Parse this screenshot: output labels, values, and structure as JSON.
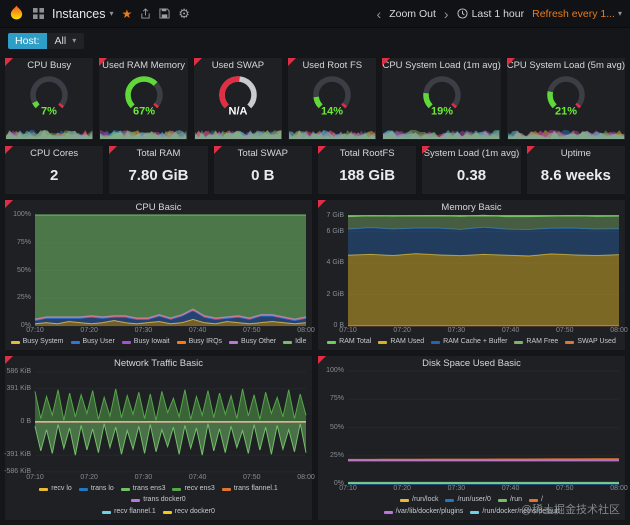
{
  "colors": {
    "accent_orange": "#eb7b18",
    "gauge_green": "#61d83a",
    "alert_red": "#e02f44",
    "panel_bg": "#1e2023"
  },
  "navbar": {
    "title": "Instances",
    "zoom_out_label": "Zoom Out",
    "time_range_label": "Last 1 hour",
    "refresh_label": "Refresh every 1..."
  },
  "submenu": {
    "host_label": "Host:",
    "host_value": "All"
  },
  "gauges": [
    {
      "title": "CPU Busy",
      "value": "7%",
      "percent": 7,
      "color": "#61d83a",
      "value_color": "#6fe83a",
      "bg": "#3b3f45",
      "red_cap": true
    },
    {
      "title": "Used RAM Memory",
      "value": "67%",
      "percent": 67,
      "color": "#61d83a",
      "value_color": "#6fe83a",
      "bg": "#3b3f45",
      "red_cap": true
    },
    {
      "title": "Used SWAP",
      "value": "N/A",
      "percent": 52,
      "color": "#e02f44",
      "value_color": "#ffffff",
      "bg": "#c9cbce",
      "red_cap": false
    },
    {
      "title": "Used Root FS",
      "value": "14%",
      "percent": 14,
      "color": "#61d83a",
      "value_color": "#6fe83a",
      "bg": "#3b3f45",
      "red_cap": true
    },
    {
      "title": "CPU System Load (1m avg)",
      "value": "19%",
      "percent": 19,
      "color": "#61d83a",
      "value_color": "#6fe83a",
      "bg": "#3b3f45",
      "red_cap": true
    },
    {
      "title": "CPU System Load (5m avg)",
      "value": "21%",
      "percent": 21,
      "color": "#61d83a",
      "value_color": "#6fe83a",
      "bg": "#3b3f45",
      "red_cap": true
    }
  ],
  "stats": [
    {
      "title": "CPU Cores",
      "value": "2"
    },
    {
      "title": "Total RAM",
      "value": "7.80 GiB"
    },
    {
      "title": "Total SWAP",
      "value": "0 B"
    },
    {
      "title": "Total RootFS",
      "value": "188 GiB"
    },
    {
      "title": "System Load (1m avg)",
      "value": "0.38"
    },
    {
      "title": "Uptime",
      "value": "8.6 weeks"
    }
  ],
  "chart_data": [
    {
      "title": "CPU Basic",
      "type": "area",
      "stacked": true,
      "y_range": [
        0,
        100
      ],
      "y_ticks": [
        {
          "label": "100%",
          "v": 100
        },
        {
          "label": "75%",
          "v": 75
        },
        {
          "label": "50%",
          "v": 50
        },
        {
          "label": "25%",
          "v": 25
        },
        {
          "label": "0%",
          "v": 0
        }
      ],
      "x": [
        "07:10",
        "07:20",
        "07:30",
        "07:40",
        "07:50",
        "08:00"
      ],
      "series": [
        {
          "name": "Busy System",
          "color": "#eab839",
          "fill": true,
          "values": [
            2,
            3,
            2,
            4,
            3,
            2,
            3,
            5,
            3,
            2,
            3,
            4,
            2,
            3,
            6,
            3,
            2,
            4,
            3,
            2,
            3,
            4,
            3,
            2,
            3
          ]
        },
        {
          "name": "Busy User",
          "color": "#3274d9",
          "fill": true,
          "values": [
            3,
            4,
            5,
            3,
            4,
            6,
            4,
            3,
            5,
            4,
            3,
            5,
            4,
            6,
            8,
            5,
            4,
            3,
            5,
            4,
            6,
            5,
            4,
            3,
            4
          ]
        },
        {
          "name": "Busy Iowait",
          "color": "#a352cc",
          "fill": true,
          "values": [
            0.7
          ]
        },
        {
          "name": "Busy IRQs",
          "color": "#ff780a",
          "fill": true,
          "values": [
            0.2
          ]
        },
        {
          "name": "Busy Other",
          "color": "#b877d9",
          "fill": true,
          "values": [
            0.3
          ]
        },
        {
          "name": "Idle",
          "color": "#73bf69",
          "fill": true,
          "opacity": 0.55,
          "values": [
            93.8,
            91.8,
            91.8,
            91.8,
            91.8,
            90.8,
            91.8,
            90.8,
            90.8,
            92.8,
            92.8,
            89.8,
            92.8,
            89.8,
            84.8,
            90.8,
            92.8,
            91.8,
            90.8,
            92.8,
            89.8,
            89.8,
            91.8,
            93.8,
            91.8
          ]
        }
      ]
    },
    {
      "title": "Memory Basic",
      "type": "area",
      "stacked": true,
      "y_range": [
        0,
        7.05
      ],
      "y_ticks": [
        {
          "label": "7 GiB",
          "v": 7
        },
        {
          "label": "6 GiB",
          "v": 6
        },
        {
          "label": "4 GiB",
          "v": 4
        },
        {
          "label": "2 GiB",
          "v": 2
        },
        {
          "label": "0 B",
          "v": 0
        }
      ],
      "x": [
        "07:10",
        "07:20",
        "07:30",
        "07:40",
        "07:50",
        "08:00"
      ],
      "series": [
        {
          "name": "RAM Total",
          "color": "#6fce5a",
          "line": true,
          "width": 1.4,
          "values": [
            7
          ]
        },
        {
          "name": "RAM Used",
          "color": "#d9af27",
          "fill": true,
          "opacity": 0.5,
          "values": [
            4.5,
            4.55,
            4.48,
            4.6,
            4.52,
            4.47,
            4.55,
            4.5,
            4.45,
            4.58,
            4.52,
            4.48,
            4.53
          ]
        },
        {
          "name": "RAM Cache + Buffer",
          "color": "#2563ab",
          "fill": true,
          "values": [
            1.65,
            1.7,
            1.68,
            1.62,
            1.7,
            1.66,
            1.72,
            1.65,
            1.68,
            1.63,
            1.7,
            1.67,
            1.65
          ]
        },
        {
          "name": "RAM Free",
          "color": "#7eb26d",
          "fill": true,
          "values": [
            0.8,
            0.75,
            0.82,
            0.78,
            0.8,
            0.83,
            0.76,
            0.8,
            0.82,
            0.77,
            0.79,
            0.81,
            0.8
          ]
        },
        {
          "name": "SWAP Used",
          "color": "#e0752d",
          "line": true,
          "values": [
            0.02
          ]
        }
      ]
    },
    {
      "title": "Network Traffic Basic",
      "type": "area",
      "stacked": false,
      "y_range": [
        -600,
        600
      ],
      "y_ticks": [
        {
          "label": "586 KiB",
          "v": 586
        },
        {
          "label": "391 KiB",
          "v": 391
        },
        {
          "label": "0 B",
          "v": 0
        },
        {
          "label": "-391 KiB",
          "v": -391
        },
        {
          "label": "-586 KiB",
          "v": -586
        }
      ],
      "x": [
        "07:10",
        "07:20",
        "07:30",
        "07:40",
        "07:50",
        "08:00"
      ],
      "legend_break": 6,
      "series": [
        {
          "name": "recv lo",
          "color": "#eab839",
          "line": true,
          "values": [
            3
          ]
        },
        {
          "name": "trans lo",
          "color": "#1f78c1",
          "line": true,
          "values": [
            -3
          ]
        },
        {
          "name": "trans ens3",
          "color": "#73bf69",
          "fill": true,
          "opacity": 0.5,
          "values": [
            -50,
            -340,
            -90,
            -370,
            -30,
            -310,
            -70,
            -390,
            -40,
            -330,
            -80,
            -360,
            -20,
            -300,
            -60,
            -380,
            -100,
            -320,
            -50,
            -370,
            -30,
            -350,
            -90,
            -290,
            -60,
            -380,
            -40,
            -310,
            -70,
            -390,
            -20,
            -340,
            -80,
            -360,
            -50,
            -300,
            -100,
            -370,
            -30,
            -330,
            -60,
            -380,
            -40,
            -320,
            -90,
            -350,
            -20,
            -360
          ]
        },
        {
          "name": "recv ens3",
          "color": "#56a64b",
          "fill": true,
          "opacity": 0.5,
          "values": [
            360,
            40,
            300,
            80,
            380,
            20,
            340,
            60,
            320,
            100,
            370,
            30,
            290,
            70,
            390,
            50,
            310,
            90,
            350,
            40,
            330,
            20,
            360,
            110,
            280,
            60,
            380,
            30,
            300,
            80,
            370,
            50,
            340,
            90,
            310,
            40,
            390,
            70,
            320,
            30,
            350,
            100,
            290,
            60,
            380,
            40,
            330,
            80
          ]
        },
        {
          "name": "trans flannel.1",
          "color": "#e0752d",
          "line": true,
          "values": [
            -1
          ]
        },
        {
          "name": "trans docker0",
          "color": "#b877d9",
          "line": true,
          "values": [
            -2
          ]
        },
        {
          "name": "recv flannel.1",
          "color": "#6ed0e0",
          "line": true,
          "values": [
            1
          ]
        },
        {
          "name": "recv docker0",
          "color": "#f2cc0c",
          "line": true,
          "values": [
            2
          ]
        }
      ]
    },
    {
      "title": "Disk Space Used Basic",
      "type": "line",
      "stacked": false,
      "y_range": [
        0,
        100
      ],
      "y_ticks": [
        {
          "label": "100%",
          "v": 100
        },
        {
          "label": "75%",
          "v": 75
        },
        {
          "label": "50%",
          "v": 50
        },
        {
          "label": "25%",
          "v": 25
        },
        {
          "label": "0%",
          "v": 0
        }
      ],
      "x": [
        "07:10",
        "07:20",
        "07:30",
        "07:40",
        "07:50",
        "08:00"
      ],
      "legend_break": 4,
      "series": [
        {
          "name": "/run/lock",
          "color": "#eab839",
          "line": true,
          "values": [
            0.3
          ]
        },
        {
          "name": "/run/user/0",
          "color": "#1f78c1",
          "line": true,
          "values": [
            0.1
          ]
        },
        {
          "name": "/run",
          "color": "#73bf69",
          "line": true,
          "values": [
            1.4
          ]
        },
        {
          "name": "/",
          "color": "#e0752d",
          "line": true,
          "width": 2,
          "values": [
            21.4,
            21.4,
            21.5,
            21.5,
            21.6,
            21.6,
            21.6,
            21.7,
            21.7,
            21.8,
            21.8,
            21.9,
            21.9
          ]
        },
        {
          "name": "/var/lib/docker/plugins",
          "color": "#b877d9",
          "line": true,
          "values": [
            20.6
          ]
        },
        {
          "name": "/run/docker/netns/default",
          "color": "#6ed0e0",
          "line": true,
          "values": [
            0.6
          ]
        }
      ]
    }
  ],
  "watermark": "@稀土掘金技术社区"
}
